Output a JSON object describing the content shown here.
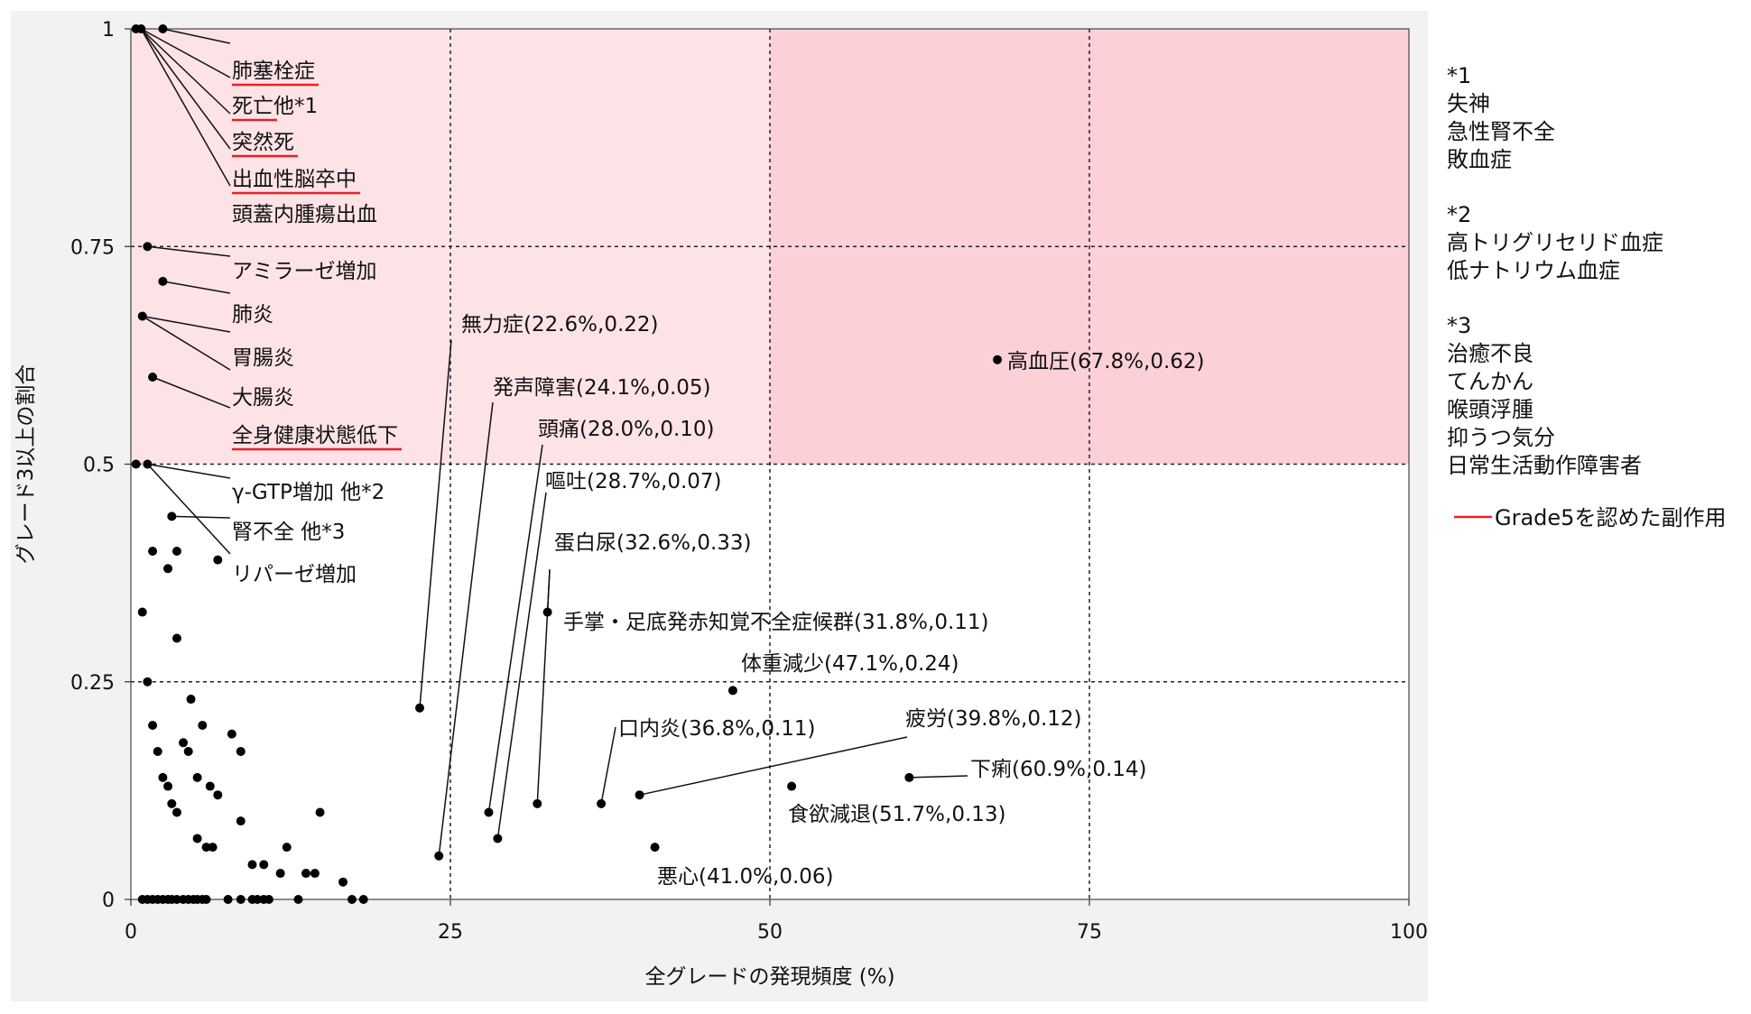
{
  "chart_data": {
    "type": "scatter",
    "xlabel": "全グレードの発現頻度 (%)",
    "ylabel": "グレード3以上の割合",
    "xlim": [
      0,
      100
    ],
    "ylim": [
      0,
      1
    ],
    "x_ticks": [
      "0",
      "25",
      "50",
      "75",
      "100"
    ],
    "y_ticks": [
      "0",
      "0.25",
      "0.5",
      "0.75",
      "1"
    ],
    "reference_lines": {
      "x": [
        25,
        50,
        75
      ],
      "y": [
        0.25,
        0.5,
        0.75
      ]
    },
    "highlight_regions": [
      {
        "x": [
          0,
          100
        ],
        "y": [
          0.5,
          1
        ],
        "color": "#fde3e6"
      },
      {
        "x": [
          50,
          100
        ],
        "y": [
          0.5,
          1
        ],
        "color": "#fbd0d7"
      }
    ],
    "point_color": "#000000",
    "grade5_color": "#e8202a",
    "points": [
      [
        0.4,
        1
      ],
      [
        0.8,
        1
      ],
      [
        2.5,
        1
      ],
      [
        1.3,
        0.75
      ],
      [
        2.5,
        0.71
      ],
      [
        0.9,
        0.67
      ],
      [
        1.7,
        0.6
      ],
      [
        0.4,
        0.5
      ],
      [
        1.3,
        0.5
      ],
      [
        3.2,
        0.44
      ],
      [
        1.7,
        0.4
      ],
      [
        3.6,
        0.4
      ],
      [
        2.9,
        0.38
      ],
      [
        6.8,
        0.39
      ],
      [
        0.9,
        0.33
      ],
      [
        3.6,
        0.3
      ],
      [
        1.3,
        0.25
      ],
      [
        4.7,
        0.23
      ],
      [
        1.7,
        0.2
      ],
      [
        5.6,
        0.2
      ],
      [
        7.9,
        0.19
      ],
      [
        4.1,
        0.18
      ],
      [
        2.1,
        0.17
      ],
      [
        4.5,
        0.17
      ],
      [
        8.6,
        0.17
      ],
      [
        2.5,
        0.14
      ],
      [
        5.2,
        0.14
      ],
      [
        2.9,
        0.13
      ],
      [
        6.2,
        0.13
      ],
      [
        6.8,
        0.12
      ],
      [
        3.2,
        0.11
      ],
      [
        3.6,
        0.1
      ],
      [
        14.8,
        0.1
      ],
      [
        8.6,
        0.09
      ],
      [
        5.2,
        0.07
      ],
      [
        5.9,
        0.06
      ],
      [
        6.4,
        0.06
      ],
      [
        12.2,
        0.06
      ],
      [
        9.5,
        0.04
      ],
      [
        10.4,
        0.04
      ],
      [
        11.7,
        0.03
      ],
      [
        13.7,
        0.03
      ],
      [
        14.4,
        0.03
      ],
      [
        16.6,
        0.02
      ],
      [
        0.9,
        0
      ],
      [
        1.3,
        0
      ],
      [
        1.7,
        0
      ],
      [
        2.1,
        0
      ],
      [
        2.5,
        0
      ],
      [
        2.9,
        0
      ],
      [
        3.2,
        0
      ],
      [
        3.6,
        0
      ],
      [
        4.1,
        0
      ],
      [
        4.5,
        0
      ],
      [
        4.9,
        0
      ],
      [
        5.2,
        0
      ],
      [
        5.6,
        0
      ],
      [
        5.9,
        0
      ],
      [
        7.6,
        0
      ],
      [
        8.6,
        0
      ],
      [
        9.5,
        0
      ],
      [
        9.9,
        0
      ],
      [
        10.4,
        0
      ],
      [
        10.8,
        0
      ],
      [
        13.1,
        0
      ],
      [
        17.3,
        0
      ],
      [
        18.2,
        0
      ],
      [
        22.6,
        0.22
      ],
      [
        24.1,
        0.05
      ],
      [
        28.0,
        0.1
      ],
      [
        28.7,
        0.07
      ],
      [
        32.6,
        0.33
      ],
      [
        31.8,
        0.11
      ],
      [
        47.1,
        0.24
      ],
      [
        36.8,
        0.11
      ],
      [
        39.8,
        0.12
      ],
      [
        60.9,
        0.14
      ],
      [
        51.7,
        0.13
      ],
      [
        41.0,
        0.06
      ],
      [
        67.8,
        0.62
      ]
    ],
    "annotations": [
      {
        "text": "肺塞栓症",
        "grade5": true
      },
      {
        "text": "死亡",
        "suffix": " 他*1",
        "grade5": true
      },
      {
        "text": "突然死",
        "grade5": true
      },
      {
        "text": "出血性脳卒中",
        "grade5": true
      },
      {
        "text": "頭蓋内腫瘍出血",
        "grade5": false
      },
      {
        "text": "アミラーゼ増加",
        "grade5": false
      },
      {
        "text": "肺炎",
        "grade5": false
      },
      {
        "text": "胃腸炎",
        "grade5": false
      },
      {
        "text": "大腸炎",
        "grade5": false
      },
      {
        "text": "全身健康状態低下",
        "grade5": true
      },
      {
        "text": "γ-GTP増加 他*2",
        "grade5": false
      },
      {
        "text": "腎不全 他*3",
        "grade5": false
      },
      {
        "text": "リパーゼ増加",
        "grade5": false
      },
      {
        "text": "無力症(22.6%,0.22)",
        "grade5": false
      },
      {
        "text": "発声障害(24.1%,0.05)",
        "grade5": false
      },
      {
        "text": "頭痛(28.0%,0.10)",
        "grade5": false
      },
      {
        "text": "嘔吐(28.7%,0.07)",
        "grade5": false
      },
      {
        "text": "蛋白尿(32.6%,0.33)",
        "grade5": false
      },
      {
        "text": "手掌・足底発赤知覚不全症候群(31.8%,0.11)",
        "grade5": false
      },
      {
        "text": "体重減少(47.1%,0.24)",
        "grade5": false
      },
      {
        "text": "口内炎(36.8%,0.11)",
        "grade5": false
      },
      {
        "text": "疲労(39.8%,0.12)",
        "grade5": false
      },
      {
        "text": "下痢(60.9%,0.14)",
        "grade5": false
      },
      {
        "text": "食欲減退(51.7%,0.13)",
        "grade5": false
      },
      {
        "text": "悪心(41.0%,0.06)",
        "grade5": false
      },
      {
        "text": "高血圧(67.8%,0.62)",
        "grade5": false
      }
    ]
  },
  "notes": [
    {
      "header": "*1",
      "items": [
        "失神",
        "急性腎不全",
        "敗血症"
      ]
    },
    {
      "header": "*2",
      "items": [
        "高トリグリセリド血症",
        "低ナトリウム血症"
      ]
    },
    {
      "header": "*3",
      "items": [
        "治癒不良",
        "てんかん",
        "喉頭浮腫",
        "抑うつ気分",
        "日常生活動作障害者"
      ]
    }
  ],
  "legend": {
    "label": "Grade5を認めた副作用"
  }
}
